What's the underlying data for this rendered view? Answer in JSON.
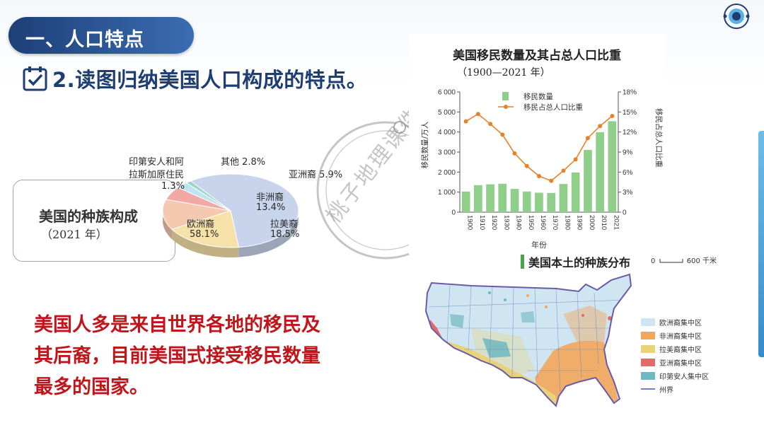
{
  "section_title": "一、人口特点",
  "task_title": "2.读图归纳美国人口构成的特点。",
  "pie": {
    "title": "美国的种族构成",
    "year": "（2021 年）",
    "slices": [
      {
        "name": "欧洲裔",
        "value": "58.1%",
        "pct": 58.1,
        "color": "#c8d3ec"
      },
      {
        "name": "拉美裔",
        "value": "18.5%",
        "pct": 18.5,
        "color": "#f6e2a8"
      },
      {
        "name": "非洲裔",
        "value": "13.4%",
        "pct": 13.4,
        "color": "#f4c9b0"
      },
      {
        "name": "亚洲裔",
        "value": "5.9%",
        "pct": 5.9,
        "color": "#f2a9a6"
      },
      {
        "name": "其他",
        "value": "2.8%",
        "pct": 2.8,
        "color": "#bfe3ef"
      },
      {
        "name": "印第安人和阿拉斯加原住民",
        "value": "1.3%",
        "pct": 1.3,
        "color": "#9fd3c7"
      }
    ],
    "label_indian_line1": "印第安人和阿",
    "label_indian_line2": "拉斯加原住民",
    "label_indian_value": "1.3%",
    "label_other": "其他 2.8%",
    "label_asian": "亚洲裔 5.9%"
  },
  "conclusion_lines": [
    "美国人多是来自世界各地的移民及",
    "其后裔，目前美国式接受移民数量",
    "最多的国家。"
  ],
  "chart_data": {
    "type": "bar",
    "title": "美国移民数量及其占总人口比重",
    "subtitle": "（1900—2021 年）",
    "categories": [
      "1900",
      "1910",
      "1920",
      "1930",
      "1940",
      "1950",
      "1960",
      "1970",
      "1980",
      "1990",
      "2000",
      "2010",
      "2021"
    ],
    "series": [
      {
        "name": "移民数量",
        "type": "bar",
        "color": "#8fcf8a",
        "values": [
          1030,
          1350,
          1390,
          1420,
          1160,
          1030,
          970,
          960,
          1410,
          1980,
          3110,
          3990,
          4540
        ]
      },
      {
        "name": "移民占总人口比重",
        "type": "line",
        "color": "#e8822a",
        "values": [
          13.6,
          14.7,
          13.2,
          11.6,
          8.8,
          6.9,
          5.4,
          4.7,
          6.2,
          7.9,
          11.1,
          12.9,
          14.4
        ]
      }
    ],
    "ylabel_left": "移民数量/万人",
    "ylabel_right": "移民占总人口比重",
    "xlabel": "年份",
    "ylim_left": [
      0,
      6000
    ],
    "ylim_right": [
      0,
      18
    ],
    "yticks_left": [
      "0",
      "1 000",
      "2 000",
      "3 000",
      "4 000",
      "5 000",
      "6 000"
    ],
    "yticks_right": [
      "0",
      "3%",
      "6%",
      "9%",
      "12%",
      "15%",
      "18%"
    ]
  },
  "map": {
    "title": "美国本土的种族分布",
    "scale_zero": "0",
    "scale_label": "600 千米",
    "legend": [
      {
        "label": "欧洲裔集中区",
        "color": "#cfe6f2"
      },
      {
        "label": "非洲裔集中区",
        "color": "#f2a65a"
      },
      {
        "label": "拉美裔集中区",
        "color": "#e8d27a"
      },
      {
        "label": "亚洲裔集中区",
        "color": "#e46a6a"
      },
      {
        "label": "印第安人集中区",
        "color": "#6fb8c0"
      },
      {
        "label": "州界",
        "color": "#6a84c4"
      }
    ]
  },
  "watermark": "桃子地理课件"
}
